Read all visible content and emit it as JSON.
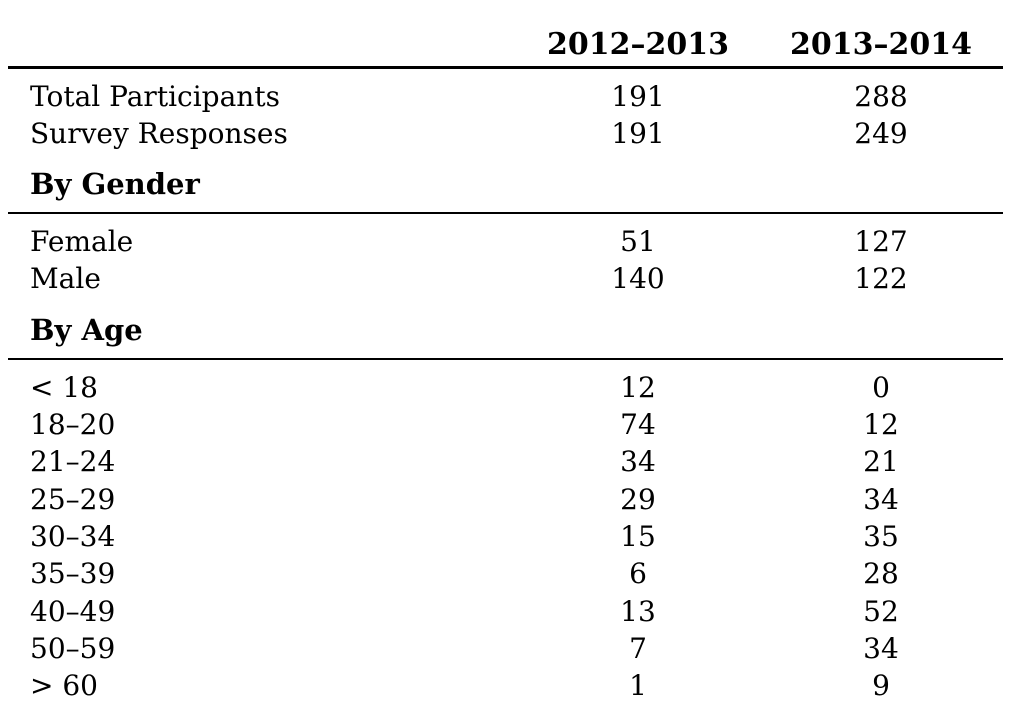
{
  "table": {
    "columns": [
      "2012–2013",
      "2013–2014"
    ],
    "summary_rows": [
      {
        "label": "Total Participants",
        "values": [
          "191",
          "288"
        ]
      },
      {
        "label": "Survey Responses",
        "values": [
          "191",
          "249"
        ]
      }
    ],
    "sections": [
      {
        "title": "By Gender",
        "rows": [
          {
            "label": "Female",
            "values": [
              "51",
              "127"
            ]
          },
          {
            "label": "Male",
            "values": [
              "140",
              "122"
            ]
          }
        ]
      },
      {
        "title": "By Age",
        "rows": [
          {
            "label": "< 18",
            "values": [
              "12",
              "0"
            ]
          },
          {
            "label": "18–20",
            "values": [
              "74",
              "12"
            ]
          },
          {
            "label": "21–24",
            "values": [
              "34",
              "21"
            ]
          },
          {
            "label": "25–29",
            "values": [
              "29",
              "34"
            ]
          },
          {
            "label": "30–34",
            "values": [
              "15",
              "35"
            ]
          },
          {
            "label": "35–39",
            "values": [
              "6",
              "28"
            ]
          },
          {
            "label": "40–49",
            "values": [
              "13",
              "52"
            ]
          },
          {
            "label": "50–59",
            "values": [
              "7",
              "34"
            ]
          },
          {
            "label": "> 60",
            "values": [
              "1",
              "9"
            ]
          }
        ]
      }
    ]
  }
}
